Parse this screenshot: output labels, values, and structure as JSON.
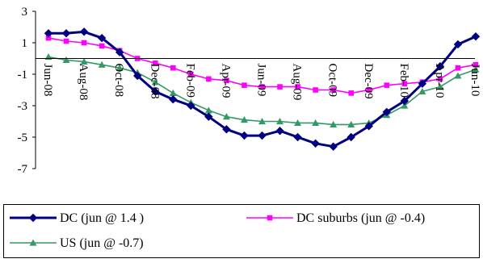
{
  "chart_data": {
    "type": "line",
    "title": "",
    "xlabel": "",
    "ylabel": "",
    "ylim": [
      -7,
      3
    ],
    "y_ticks": [
      3,
      1,
      -1,
      -3,
      -5,
      -7
    ],
    "y_tick_labels": [
      "3",
      "1",
      "-1",
      "-3",
      "-5",
      "-7"
    ],
    "x": [
      "Jun-08",
      "Jul-08",
      "Aug-08",
      "Sep-08",
      "Oct-08",
      "Nov-08",
      "Dec-08",
      "Jan-09",
      "Feb-09",
      "Mar-09",
      "Apr-09",
      "May-09",
      "Jun-09",
      "Jul-09",
      "Aug-09",
      "Sep-09",
      "Oct-09",
      "Nov-09",
      "Dec-09",
      "Jan-10",
      "Feb-10",
      "Mar-10",
      "Apr-10",
      "May-10",
      "Jun-10"
    ],
    "x_tick_labels": [
      "Jun-08",
      "Aug-08",
      "Oct-08",
      "Dec-08",
      "Feb-09",
      "Apr-09",
      "Jun-09",
      "Aug-09",
      "Oct-09",
      "Dec-09",
      "Feb-10",
      "Apr-10",
      "Jun-10"
    ],
    "grid": false,
    "legend_position": "bottom",
    "series": [
      {
        "name": "DC (jun @ 1.4 )",
        "color": "#000080",
        "marker": "diamond",
        "values": [
          1.6,
          1.6,
          1.7,
          1.3,
          0.4,
          -1.1,
          -2.1,
          -2.6,
          -3.0,
          -3.7,
          -4.5,
          -4.9,
          -4.9,
          -4.6,
          -5.0,
          -5.4,
          -5.6,
          -5.0,
          -4.3,
          -3.4,
          -2.7,
          -1.6,
          -0.5,
          0.9,
          1.4
        ]
      },
      {
        "name": "DC suburbs (jun @ -0.4)",
        "color": "#ff00ff",
        "marker": "square",
        "values": [
          1.3,
          1.1,
          1.0,
          0.8,
          0.5,
          0.0,
          -0.3,
          -0.6,
          -1.0,
          -1.3,
          -1.4,
          -1.7,
          -1.8,
          -1.8,
          -1.8,
          -2.0,
          -2.0,
          -2.2,
          -2.0,
          -1.7,
          -1.6,
          -1.5,
          -1.3,
          -0.6,
          -0.4
        ]
      },
      {
        "name": "US (jun @ -0.7)",
        "color": "#339966",
        "marker": "triangle",
        "values": [
          0.1,
          -0.1,
          -0.2,
          -0.4,
          -0.6,
          -0.9,
          -1.5,
          -2.2,
          -2.8,
          -3.3,
          -3.7,
          -3.9,
          -4.0,
          -4.0,
          -4.1,
          -4.1,
          -4.2,
          -4.2,
          -4.1,
          -3.6,
          -3.0,
          -2.1,
          -1.8,
          -1.1,
          -0.7
        ]
      }
    ]
  }
}
